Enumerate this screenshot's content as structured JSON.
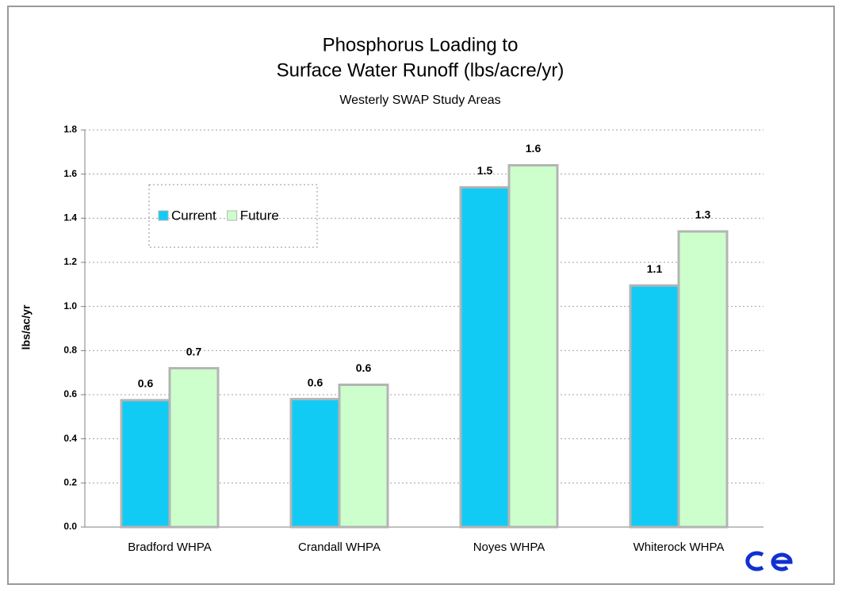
{
  "chart_data": {
    "type": "bar",
    "title": [
      "Phosphorus Loading to",
      "Surface Water Runoff (lbs/acre/yr)"
    ],
    "subtitle": "Westerly SWAP Study Areas",
    "y_label": "lbs/ac/yr",
    "categories": [
      "Bradford WHPA",
      "Crandall WHPA",
      "Noyes WHPA",
      "Whiterock WHPA"
    ],
    "series": [
      {
        "name": "Current",
        "color": "#12cbf5",
        "values": [
          0.575,
          0.58,
          1.54,
          1.095
        ],
        "value_labels": [
          "0.6",
          "0.6",
          "1.5",
          "1.1"
        ]
      },
      {
        "name": "Future",
        "color": "#ccffcc",
        "values": [
          0.72,
          0.645,
          1.64,
          1.34
        ],
        "value_labels": [
          "0.7",
          "0.6",
          "1.6",
          "1.3"
        ]
      }
    ],
    "ylim": [
      0,
      1.8
    ],
    "yticks": [
      {
        "value": 0,
        "label": "0.0"
      },
      0.2,
      0.4,
      0.6,
      0.8,
      {
        "value": 1,
        "label": "1.0"
      },
      1.2,
      1.4,
      1.6,
      1.8
    ],
    "grid": true,
    "legend": "upper left"
  }
}
